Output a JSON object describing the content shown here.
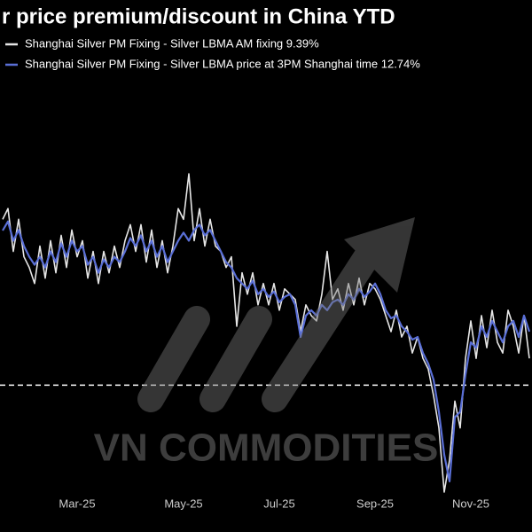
{
  "chart_data": {
    "type": "line",
    "title": "r price premium/discount in China YTD",
    "watermark": "VN COMMODITIES",
    "categories": [
      null,
      null,
      null,
      null,
      null,
      null,
      null,
      null,
      null,
      null,
      null,
      null,
      null,
      null,
      "Mar-25",
      null,
      null,
      null,
      null,
      null,
      null,
      null,
      null,
      null,
      null,
      null,
      null,
      null,
      null,
      null,
      null,
      null,
      null,
      null,
      "May-25",
      null,
      null,
      null,
      null,
      null,
      null,
      null,
      null,
      null,
      null,
      null,
      null,
      null,
      null,
      null,
      null,
      null,
      "Jul-25",
      null,
      null,
      null,
      null,
      null,
      null,
      null,
      null,
      null,
      null,
      null,
      null,
      null,
      null,
      null,
      null,
      null,
      "Sep-25",
      null,
      null,
      null,
      null,
      null,
      null,
      null,
      null,
      null,
      null,
      null,
      null,
      null,
      null,
      null,
      null,
      null,
      "Nov-25",
      null,
      null,
      null,
      null,
      null,
      null,
      null,
      null,
      null,
      null,
      null
    ],
    "series": [
      {
        "name": "Shanghai Silver PM Fixing - Silver LBMA AM fixing 9.39%",
        "color": "#e6e6e6",
        "values": [
          31,
          33,
          25,
          31,
          24,
          22,
          19,
          26,
          20,
          27,
          21,
          28,
          22,
          29,
          24,
          27,
          20,
          25,
          19,
          25,
          21,
          26,
          22,
          27,
          30,
          25,
          30,
          23,
          29,
          22,
          27,
          21,
          26,
          33,
          31,
          39.5,
          27,
          33,
          26,
          31,
          26,
          25,
          22,
          24,
          11,
          21,
          17,
          21,
          15,
          19,
          15,
          19,
          14,
          18,
          17,
          16,
          10,
          15,
          13,
          12,
          17,
          25,
          16,
          18,
          14,
          19,
          15,
          20,
          15,
          19,
          18,
          16,
          13,
          10,
          14,
          9,
          11,
          6,
          9,
          5,
          3,
          -2,
          -8,
          -20,
          -14,
          -3,
          -8,
          5,
          12,
          5,
          13,
          7,
          14,
          8,
          6,
          14,
          11,
          6,
          13,
          5
        ]
      },
      {
        "name": "Shanghai Silver PM Fixing - Silver LBMA price at 3PM Shanghai time 12.74%",
        "color": "#5a6fd6",
        "values": [
          28.9,
          30.6,
          27,
          29,
          26,
          24,
          22.5,
          24,
          22,
          25,
          23,
          26.5,
          24,
          27,
          25,
          26,
          22.5,
          24,
          21,
          23.5,
          22,
          24,
          23,
          25,
          27.5,
          26,
          28,
          25,
          27,
          24,
          26,
          23,
          25,
          27,
          28.5,
          27,
          29,
          30,
          28,
          29,
          27,
          25,
          23,
          22,
          20,
          19,
          18,
          19.5,
          17,
          18,
          16.5,
          17.5,
          15.5,
          16.5,
          17,
          15,
          9,
          13,
          14,
          13,
          15,
          14,
          15.5,
          16,
          15,
          17,
          16,
          18,
          16.5,
          17.5,
          19,
          17,
          14,
          12.5,
          13,
          11,
          10,
          8.5,
          9,
          6,
          4,
          1,
          -5,
          -13,
          -18,
          -6,
          -5,
          2,
          8,
          7,
          11,
          9,
          12,
          10,
          8,
          11,
          12,
          9,
          13,
          10
        ]
      }
    ],
    "ylim": [
      -20,
      72
    ],
    "hline": 0
  }
}
